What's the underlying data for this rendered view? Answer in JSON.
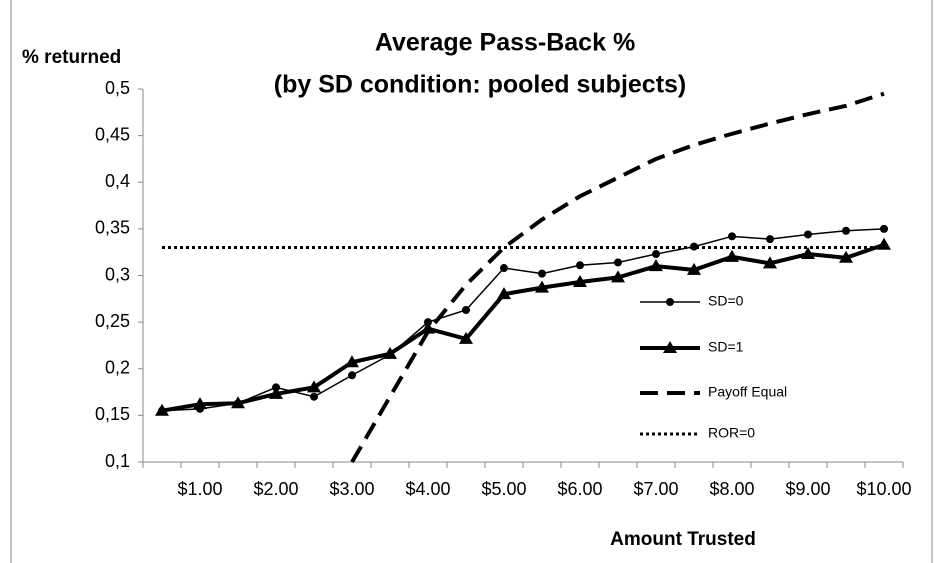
{
  "chart_data": {
    "type": "line",
    "title": "Average Pass-Back %",
    "subtitle": "(by SD condition: pooled subjects)",
    "y_label": "% returned",
    "x_label": "Amount Trusted",
    "categories": [
      null,
      "$1.00",
      null,
      "$2.00",
      null,
      "$3.00",
      null,
      "$4.00",
      null,
      "$5.00",
      null,
      "$6.00",
      null,
      "$7.00",
      null,
      "$8.00",
      null,
      "$9.00",
      null,
      "$10.00"
    ],
    "ylim": [
      0.1,
      0.5
    ],
    "yticks": [
      {
        "value": 0.1,
        "label": "0,1"
      },
      {
        "value": 0.15,
        "label": "0,15"
      },
      {
        "value": 0.2,
        "label": "0,2"
      },
      {
        "value": 0.25,
        "label": "0,25"
      },
      {
        "value": 0.3,
        "label": "0,3"
      },
      {
        "value": 0.35,
        "label": "0,35"
      },
      {
        "value": 0.4,
        "label": "0,4"
      },
      {
        "value": 0.45,
        "label": "0,45"
      },
      {
        "value": 0.5,
        "label": "0,5"
      }
    ],
    "grid": false,
    "legend": "right",
    "series": [
      {
        "name": "SD=0",
        "color": "#000000",
        "marker": "circle",
        "dash": "solid",
        "values": [
          0.155,
          0.157,
          0.163,
          0.18,
          0.17,
          0.193,
          0.215,
          0.25,
          0.263,
          0.308,
          0.302,
          0.311,
          0.314,
          0.323,
          0.331,
          0.342,
          0.339,
          0.344,
          0.348,
          0.35
        ]
      },
      {
        "name": "SD=1",
        "color": "#000000",
        "marker": "triangle",
        "dash": "solid",
        "values": [
          0.155,
          0.162,
          0.163,
          0.173,
          0.18,
          0.207,
          0.216,
          0.243,
          0.232,
          0.28,
          0.287,
          0.293,
          0.298,
          0.31,
          0.306,
          0.32,
          0.313,
          0.323,
          0.319,
          0.333
        ]
      },
      {
        "name": "Payoff Equal",
        "color": "#000000",
        "marker": "none",
        "dash": "dashed",
        "values": [
          null,
          null,
          null,
          null,
          null,
          0.1,
          0.17,
          0.24,
          0.29,
          0.33,
          0.36,
          0.385,
          0.405,
          0.425,
          0.44,
          0.452,
          0.463,
          0.473,
          0.482,
          0.495
        ]
      },
      {
        "name": "ROR=0",
        "color": "#000000",
        "marker": "none",
        "dash": "dotted",
        "values": [
          0.33,
          0.33,
          0.33,
          0.33,
          0.33,
          0.33,
          0.33,
          0.33,
          0.33,
          0.33,
          0.33,
          0.33,
          0.33,
          0.33,
          0.33,
          0.33,
          0.33,
          0.33,
          0.33,
          0.33
        ]
      }
    ]
  }
}
